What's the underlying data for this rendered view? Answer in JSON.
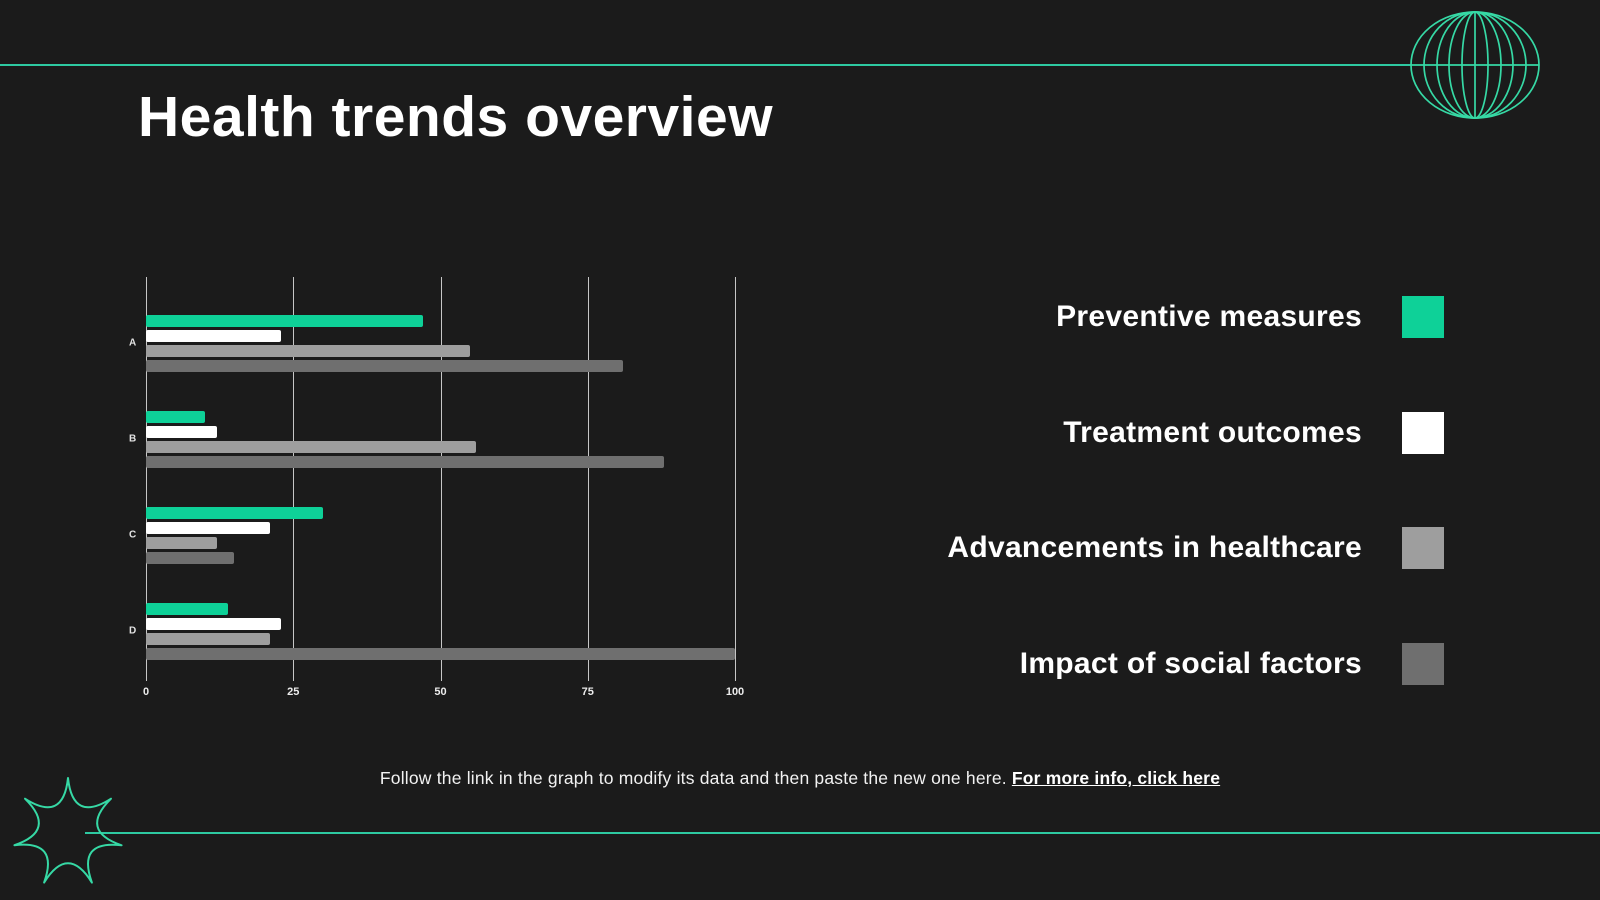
{
  "slide": {
    "title": "Health trends overview",
    "footer": {
      "text": "Follow the link in the graph to modify its data and then paste the new one here. ",
      "link": "For more info, click here"
    }
  },
  "colors": {
    "background": "#1b1b1b",
    "accent_green": "#0ed198",
    "decor_line_green": "#2ec9a1",
    "decor_icon_green": "#36d9a5",
    "white": "#ffffff",
    "gray_light": "#9e9e9e",
    "gray_dark": "#6f6f6f",
    "gridline": "#c6c6c6"
  },
  "icons": {
    "top_right": "globe-wireframe-icon",
    "bottom_left": "starburst-icon"
  },
  "legend": [
    {
      "label": "Preventive measures",
      "color": "#0ed198"
    },
    {
      "label": "Treatment outcomes",
      "color": "#ffffff"
    },
    {
      "label": "Advancements in healthcare",
      "color": "#9e9e9e"
    },
    {
      "label": "Impact of social factors",
      "color": "#6f6f6f"
    }
  ],
  "chart_data": {
    "type": "bar",
    "orientation": "horizontal",
    "title": "",
    "xlabel": "",
    "ylabel": "",
    "categories": [
      "A",
      "B",
      "C",
      "D"
    ],
    "series": [
      {
        "name": "Preventive measures",
        "color": "#0ed198",
        "values": [
          47,
          10,
          30,
          14
        ]
      },
      {
        "name": "Treatment outcomes",
        "color": "#ffffff",
        "values": [
          23,
          12,
          21,
          23
        ]
      },
      {
        "name": "Advancements in healthcare",
        "color": "#9e9e9e",
        "values": [
          55,
          56,
          12,
          21
        ]
      },
      {
        "name": "Impact of social factors",
        "color": "#6f6f6f",
        "values": [
          81,
          88,
          15,
          100
        ]
      }
    ],
    "x_ticks": [
      0,
      25,
      50,
      75,
      100
    ],
    "xlim": [
      0,
      100
    ],
    "grid": true,
    "legend_position": "right"
  }
}
